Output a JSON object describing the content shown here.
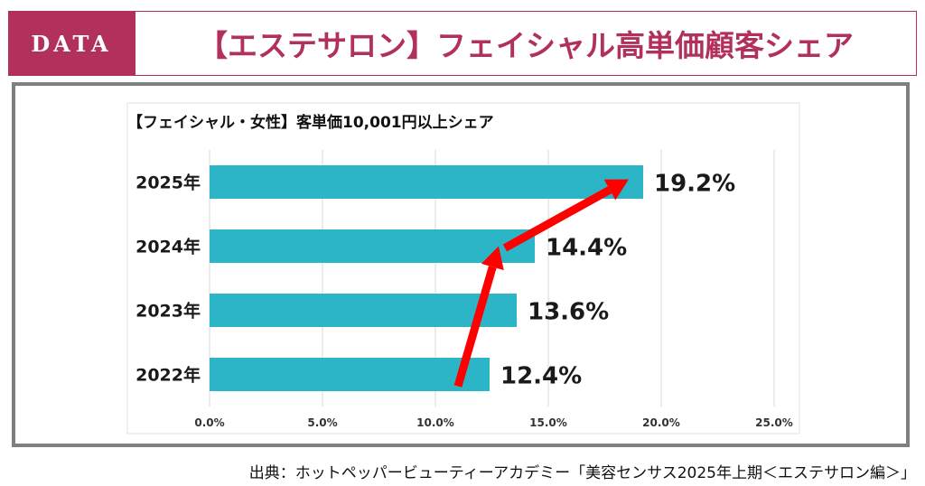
{
  "header": {
    "tag": "DATA",
    "title": "【エステサロン】フェイシャル高単価顧客シェア"
  },
  "colors": {
    "brand": "#b2305c",
    "bar": "#2cb5c6",
    "arrow": "#ff0000",
    "frame": "#7f7f7f"
  },
  "chart_data": {
    "type": "bar",
    "orientation": "horizontal",
    "title": "【フェイシャル・女性】客単価10,001円以上シェア",
    "categories": [
      "2025年",
      "2024年",
      "2023年",
      "2022年"
    ],
    "values": [
      19.2,
      14.4,
      13.6,
      12.4
    ],
    "data_labels": [
      "19.2%",
      "14.4%",
      "13.6%",
      "12.4%"
    ],
    "xlim": [
      0,
      25
    ],
    "xticks": [
      "0.0%",
      "5.0%",
      "10.0%",
      "15.0%",
      "20.0%",
      "25.0%"
    ],
    "xlabel": "",
    "ylabel": "",
    "grid": true,
    "annotation": "red arrows showing upward trend from 2022年 to 2024年 and 2024年 to 2025年"
  },
  "footer": {
    "source": "出典：ホットペッパービューティーアカデミー「美容センサス2025年上期＜エステサロン編＞」"
  }
}
